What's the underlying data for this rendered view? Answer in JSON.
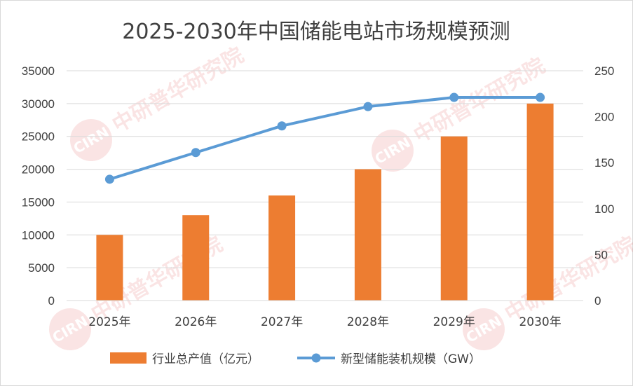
{
  "chart_data": {
    "type": "bar+line",
    "title": "2025-2030年中国储能电站市场规模预测",
    "categories": [
      "2025年",
      "2026年",
      "2027年",
      "2028年",
      "2029年",
      "2030年"
    ],
    "series": [
      {
        "name": "行业总产值（亿元）",
        "type": "bar",
        "axis": "left",
        "color": "#ED7D31",
        "values": [
          10000,
          13000,
          16000,
          20000,
          25000,
          30000
        ]
      },
      {
        "name": "新型储能装机规模（GW）",
        "type": "line",
        "axis": "right",
        "color": "#5B9BD5",
        "values": [
          132,
          161,
          190,
          211,
          221,
          221
        ]
      }
    ],
    "y_left": {
      "ticks": [
        "0",
        "5000",
        "10000",
        "15000",
        "20000",
        "25000",
        "30000",
        "35000"
      ],
      "ylim": [
        0,
        35000
      ]
    },
    "y_right": {
      "ticks": [
        "0",
        "50",
        "100",
        "150",
        "200",
        "250"
      ],
      "ylim": [
        0,
        250
      ]
    },
    "grid": true,
    "legend_position": "bottom",
    "watermark": "中研普华研究院 ChinaIRN.COM CIRN"
  }
}
